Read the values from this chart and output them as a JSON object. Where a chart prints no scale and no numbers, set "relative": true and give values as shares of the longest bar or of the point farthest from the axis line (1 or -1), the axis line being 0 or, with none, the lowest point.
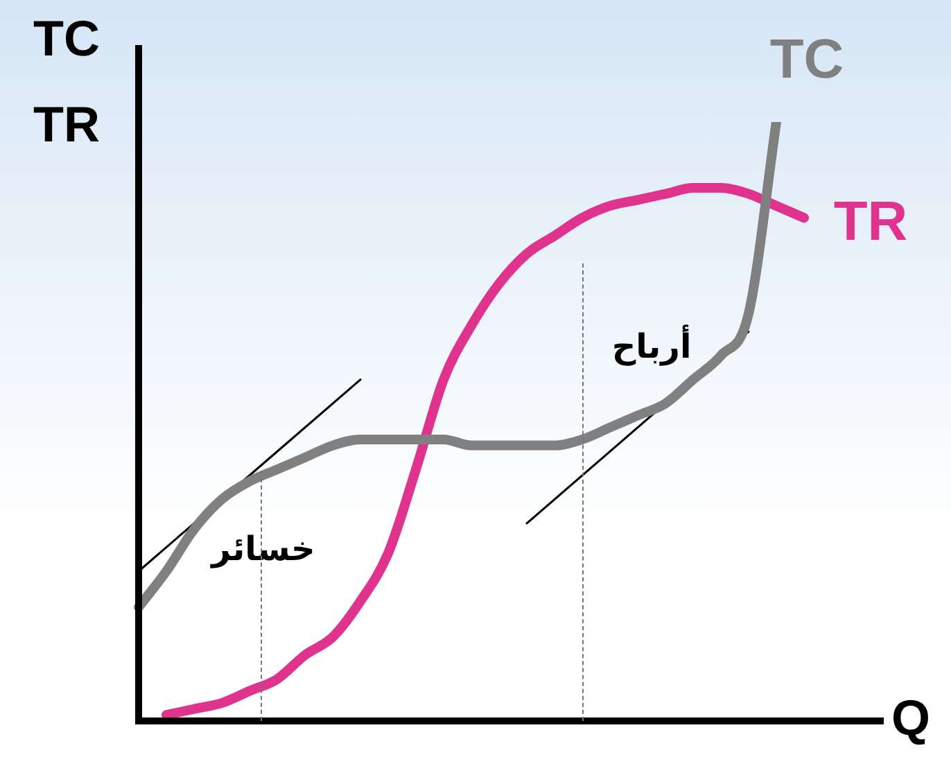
{
  "chart_data": {
    "type": "line",
    "relative": true,
    "xlabel": "Q",
    "ylabel": "TC\nTR",
    "categories": [
      null,
      null,
      null,
      null,
      null,
      null,
      null,
      null,
      null,
      null,
      null,
      null,
      null,
      null,
      null,
      null,
      null,
      null,
      null,
      null,
      null,
      null,
      null,
      null,
      null
    ],
    "series": [
      {
        "name": "TC",
        "color": "#808080",
        "values": [
          0.19,
          0.25,
          0.32,
          0.37,
          0.4,
          0.42,
          0.44,
          0.46,
          0.47,
          0.47,
          0.47,
          0.47,
          0.46,
          0.46,
          0.46,
          0.46,
          0.47,
          0.49,
          0.51,
          0.53,
          0.57,
          0.61,
          0.68,
          1,
          null
        ]
      },
      {
        "name": "TR",
        "color": "#e0338e",
        "values": [
          null,
          0.01,
          0.02,
          0.03,
          0.05,
          0.07,
          0.11,
          0.14,
          0.2,
          0.28,
          0.42,
          0.57,
          0.66,
          0.73,
          0.78,
          0.81,
          0.84,
          0.86,
          0.87,
          0.88,
          0.89,
          0.89,
          0.88,
          0.86,
          0.84
        ]
      },
      {
        "color": "#000000",
        "values": [
          0.25,
          null,
          null,
          null,
          null,
          null,
          null,
          null,
          0.57,
          null,
          null,
          null,
          null,
          null,
          null,
          null,
          null,
          null,
          null,
          null,
          null,
          null,
          null,
          null,
          null
        ]
      },
      {
        "color": "#000000",
        "values": [
          null,
          null,
          null,
          null,
          null,
          null,
          null,
          null,
          null,
          null,
          null,
          null,
          null,
          null,
          0.33,
          null,
          null,
          null,
          null,
          null,
          null,
          null,
          0.65,
          null,
          null
        ]
      }
    ],
    "annotations": [
      "خسائر",
      "أرباح"
    ]
  }
}
